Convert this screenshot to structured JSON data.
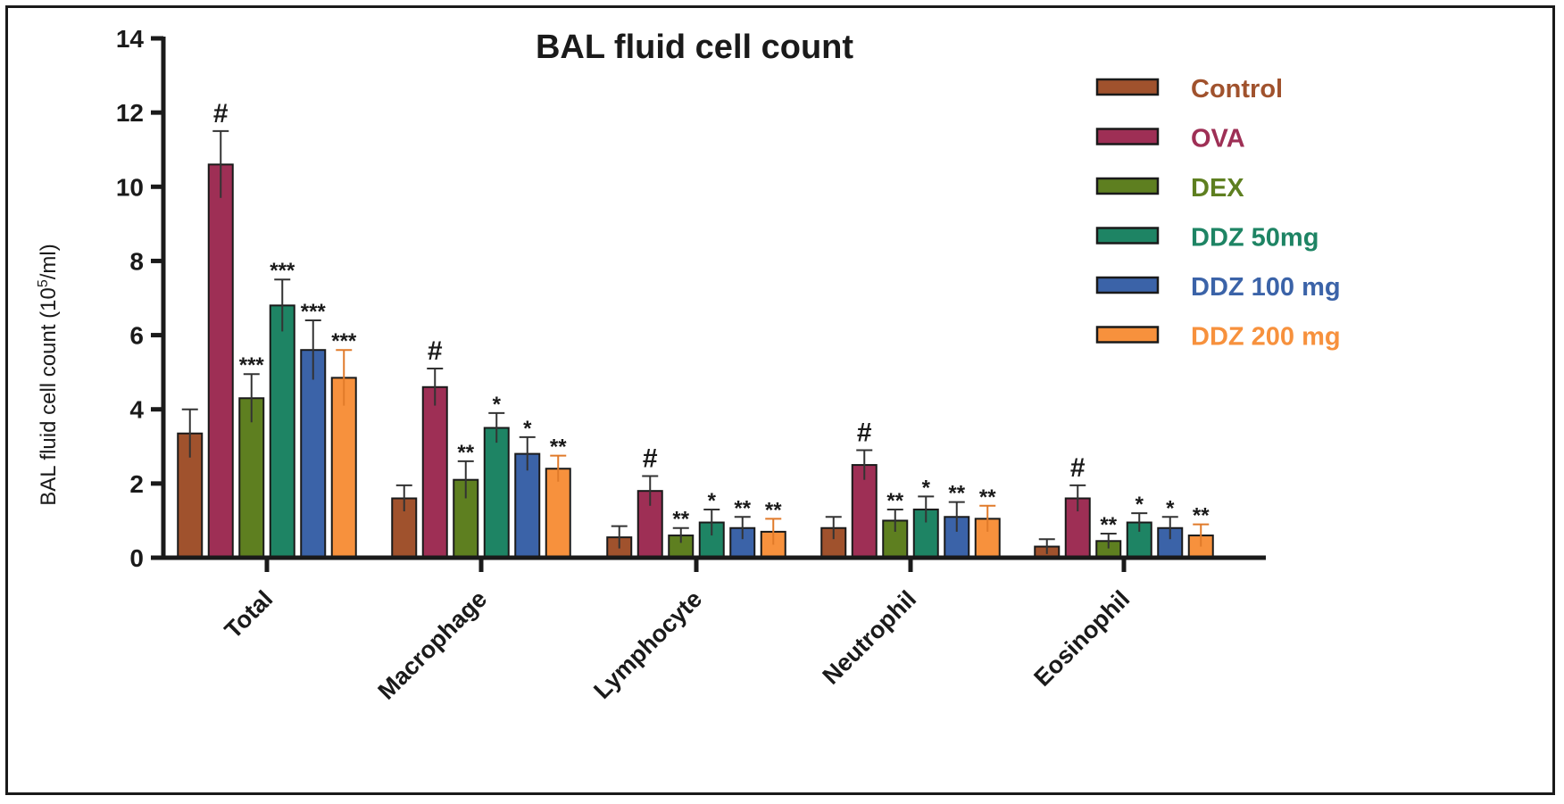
{
  "chart_data": {
    "type": "bar",
    "title": "BAL fluid cell count",
    "ylabel": {
      "prefix": "BAL fluid cell count (10",
      "sup": "5",
      "suffix": "/ml)"
    },
    "ylim": [
      0,
      14
    ],
    "yticks": [
      "0",
      "2",
      "4",
      "6",
      "8",
      "10",
      "12",
      "14"
    ],
    "categories": [
      "Total",
      "Macrophage",
      "Lymphocyte",
      "Neutrophil",
      "Eosinophil"
    ],
    "legend_position": "top-right",
    "series": [
      {
        "name": "Control",
        "color": "#A0522D",
        "values": [
          3.35,
          1.6,
          0.55,
          0.8,
          0.3
        ],
        "errors": [
          0.65,
          0.35,
          0.3,
          0.3,
          0.2
        ],
        "marks": [
          "",
          "",
          "",
          "",
          ""
        ]
      },
      {
        "name": "OVA",
        "color": "#9E2F55",
        "values": [
          10.6,
          4.6,
          1.8,
          2.5,
          1.6
        ],
        "errors": [
          0.9,
          0.5,
          0.4,
          0.4,
          0.35
        ],
        "marks": [
          "#",
          "#",
          "#",
          "#",
          "#"
        ]
      },
      {
        "name": "DEX",
        "color": "#5E7F20",
        "values": [
          4.3,
          2.1,
          0.6,
          1.0,
          0.45
        ],
        "errors": [
          0.65,
          0.5,
          0.2,
          0.3,
          0.2
        ],
        "marks": [
          "***",
          "**",
          "**",
          "**",
          "**"
        ]
      },
      {
        "name": "DDZ 50mg",
        "color": "#1E8464",
        "values": [
          6.8,
          3.5,
          0.95,
          1.3,
          0.95
        ],
        "errors": [
          0.7,
          0.4,
          0.35,
          0.35,
          0.25
        ],
        "marks": [
          "***",
          "*",
          "*",
          "*",
          "*"
        ]
      },
      {
        "name": "DDZ 100 mg",
        "color": "#3B63A8",
        "values": [
          5.6,
          2.8,
          0.8,
          1.1,
          0.8
        ],
        "errors": [
          0.8,
          0.45,
          0.3,
          0.4,
          0.3
        ],
        "marks": [
          "***",
          "*",
          "**",
          "**",
          "*"
        ]
      },
      {
        "name": "DDZ 200 mg",
        "color": "#F7913D",
        "values": [
          4.85,
          2.4,
          0.7,
          1.05,
          0.6
        ],
        "errors": [
          0.75,
          0.35,
          0.35,
          0.35,
          0.3
        ],
        "marks": [
          "***",
          "**",
          "**",
          "**",
          "**"
        ]
      }
    ]
  }
}
